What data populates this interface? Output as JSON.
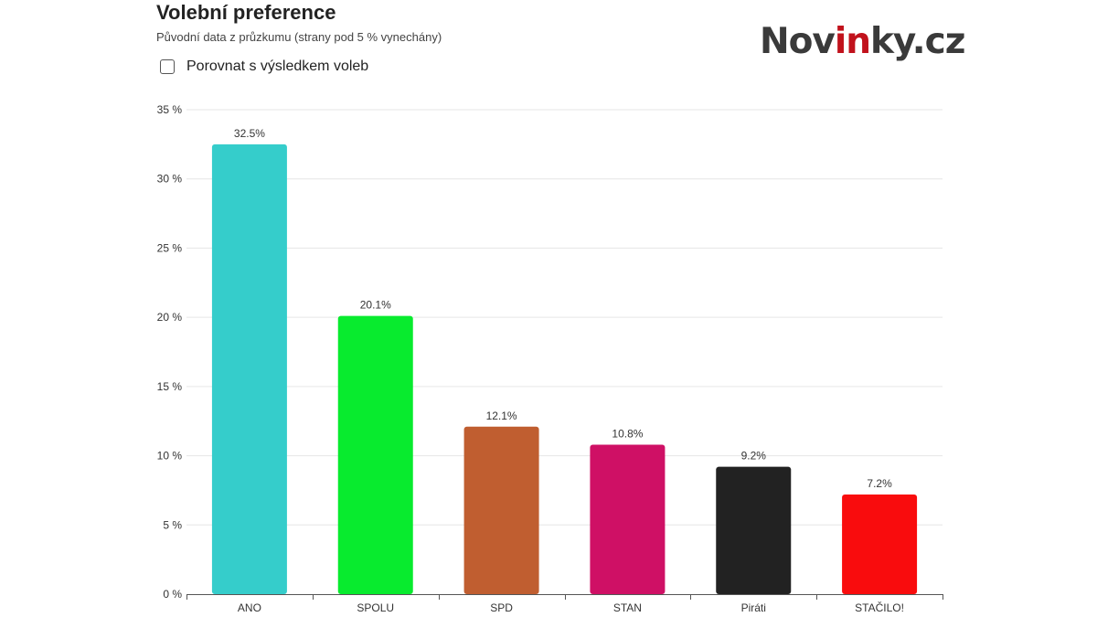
{
  "header": {
    "title": "Volební preference",
    "subtitle": "Původní data z průzkumu (strany pod 5 % vynechány)",
    "compare_label": "Porovnat s výsledkem voleb",
    "compare_checked": false
  },
  "logo": {
    "part1": "Nov",
    "part2": "in",
    "part3": "ky.cz",
    "text_color": "#3a3a3a",
    "accent_color": "#c1121c"
  },
  "chart_data": {
    "type": "bar",
    "title": "Volební preference",
    "subtitle": "Původní data z průzkumu (strany pod 5 % vynechány)",
    "categories": [
      "ANO",
      "SPOLU",
      "SPD",
      "STAN",
      "Piráti",
      "STAČILO!"
    ],
    "values": [
      32.5,
      20.1,
      12.1,
      10.8,
      9.2,
      7.2
    ],
    "value_labels": [
      "32.5%",
      "20.1%",
      "12.1%",
      "10.8%",
      "9.2%",
      "7.2%"
    ],
    "colors": [
      "#35cdcb",
      "#08eb2e",
      "#c05e30",
      "#cf1065",
      "#222222",
      "#f90c0d"
    ],
    "ylim": [
      0,
      35
    ],
    "yticks": [
      0,
      5,
      10,
      15,
      20,
      25,
      30,
      35
    ],
    "ytick_labels": [
      "0 %",
      "5 %",
      "10 %",
      "15 %",
      "20 %",
      "25 %",
      "30 %",
      "35 %"
    ],
    "xlabel": "",
    "ylabel": "",
    "grid": true,
    "legend": "none"
  }
}
